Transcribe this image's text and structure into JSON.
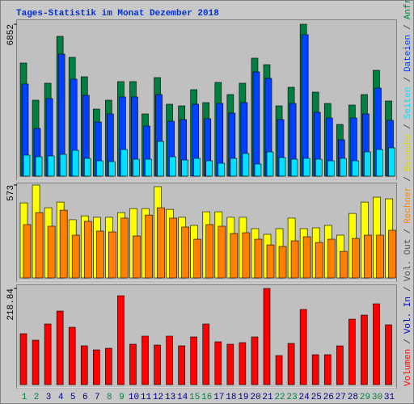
{
  "title": "Tages-Statistik im Monat Dezember 2018",
  "legend_separator": "/",
  "chart_data": [
    {
      "type": "bar",
      "ylim": [
        0,
        6852
      ],
      "yticks": [
        6852
      ],
      "series": [
        {
          "name": "Anfragen",
          "color": "#008040",
          "values": [
            5103,
            3426,
            4192,
            6306,
            5358,
            4483,
            3025,
            3426,
            4265,
            4265,
            2807,
            4447,
            3244,
            3171,
            3900,
            3317,
            4228,
            3681,
            4192,
            5322,
            5030,
            3171,
            4010,
            6852,
            3791,
            3281,
            2333,
            3208,
            3681,
            4775,
            3390
          ]
        },
        {
          "name": "Dateien",
          "color": "#0040ff",
          "values": [
            4155,
            2150,
            3499,
            5504,
            4374,
            3645,
            2442,
            2807,
            3572,
            3572,
            2260,
            3681,
            2479,
            2552,
            3244,
            2588,
            3281,
            2843,
            3317,
            4702,
            4410,
            2552,
            3281,
            6379,
            2880,
            2624,
            1640,
            2624,
            2807,
            3973,
            2515
          ]
        },
        {
          "name": "Seiten",
          "color": "#00e0ff",
          "values": [
            948,
            875,
            911,
            984,
            1166,
            802,
            693,
            656,
            1203,
            765,
            765,
            1567,
            875,
            729,
            802,
            693,
            583,
            802,
            1021,
            547,
            1094,
            838,
            765,
            802,
            765,
            693,
            802,
            693,
            1094,
            1203,
            1276
          ]
        }
      ]
    },
    {
      "type": "bar",
      "ylim": [
        0,
        573
      ],
      "yticks": [
        573
      ],
      "series": [
        {
          "name": "Besuche",
          "color": "#ffff00",
          "values": [
            463,
            573,
            433,
            468,
            359,
            383,
            374,
            374,
            403,
            428,
            428,
            563,
            423,
            374,
            324,
            408,
            408,
            374,
            374,
            304,
            269,
            304,
            369,
            304,
            309,
            324,
            264,
            398,
            468,
            498,
            488
          ]
        },
        {
          "name": "Rechner",
          "color": "#ff8000",
          "values": [
            329,
            403,
            319,
            418,
            264,
            349,
            289,
            284,
            369,
            259,
            388,
            433,
            369,
            314,
            239,
            329,
            319,
            274,
            279,
            239,
            204,
            194,
            229,
            254,
            219,
            239,
            164,
            244,
            264,
            264,
            294
          ]
        }
      ]
    },
    {
      "type": "bar",
      "ylim": [
        0,
        218.84
      ],
      "yticks": [
        218.84
      ],
      "categories": [
        "1",
        "2",
        "3",
        "4",
        "5",
        "6",
        "7",
        "8",
        "9",
        "10",
        "11",
        "12",
        "13",
        "14",
        "15",
        "16",
        "17",
        "18",
        "19",
        "20",
        "21",
        "22",
        "23",
        "24",
        "25",
        "26",
        "27",
        "28",
        "29",
        "30",
        "31"
      ],
      "category_colors": [
        "#008040",
        "#008040",
        "#000080",
        "#000080",
        "#000080",
        "#000080",
        "#000080",
        "#008040",
        "#008040",
        "#000080",
        "#000080",
        "#000080",
        "#000080",
        "#000080",
        "#008040",
        "#008040",
        "#000080",
        "#000080",
        "#000080",
        "#000080",
        "#000080",
        "#008040",
        "#008040",
        "#000080",
        "#000080",
        "#000080",
        "#000080",
        "#000080",
        "#008040",
        "#008040",
        "#000080"
      ],
      "series": [
        {
          "name": "Volumen",
          "color": "#ff0000",
          "values": [
            115.86,
            101.15,
            137.93,
            167.35,
            130.57,
            88.27,
            79.08,
            82.76,
            202.29,
            91.95,
            110.34,
            90.11,
            110.34,
            88.27,
            108.5,
            137.93,
            97.47,
            91.95,
            95.63,
            108.5,
            218.84,
            66.2,
            93.79,
            171.03,
            68.04,
            68.04,
            88.27,
            148.96,
            158.15,
            183.9,
            136.09
          ]
        }
      ],
      "extra_legend": [
        {
          "name": "Vol. In",
          "color": "#0000c0"
        },
        {
          "name": "Vol. Out",
          "color": "#505050"
        }
      ]
    }
  ]
}
